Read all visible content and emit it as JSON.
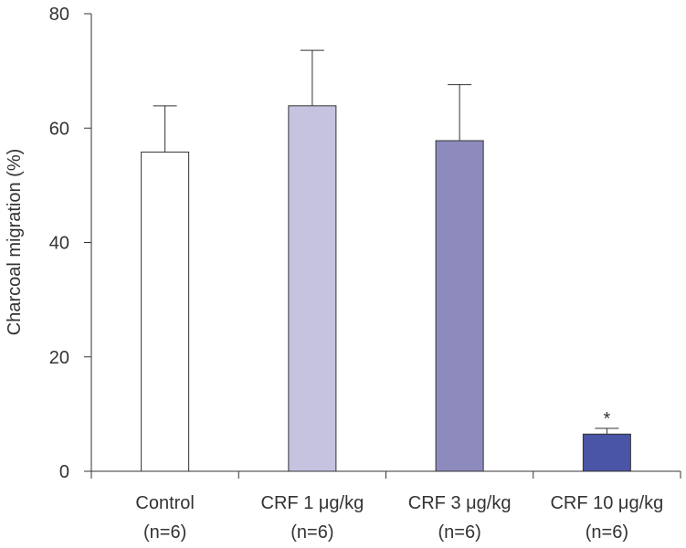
{
  "chart_data": {
    "type": "bar",
    "title": "",
    "xlabel": "",
    "ylabel": "Charcoal migration (%)",
    "ylim": [
      0,
      80
    ],
    "yticks": [
      0,
      20,
      40,
      60,
      80
    ],
    "categories": [
      {
        "name": "Control",
        "n": "(n=6)"
      },
      {
        "name": "CRF 1 μg/kg",
        "n": "(n=6)"
      },
      {
        "name": "CRF 3 μg/kg",
        "n": "(n=6)"
      },
      {
        "name": "CRF 10 μg/kg",
        "n": "(n=6)"
      }
    ],
    "values": [
      55.8,
      63.9,
      57.8,
      6.5
    ],
    "errors": [
      8.1,
      9.7,
      9.8,
      1.0
    ],
    "colors": [
      "#ffffff",
      "#c5c3e0",
      "#8d8bbd",
      "#4a55a6"
    ],
    "annotations": [
      "",
      "",
      "",
      "*"
    ]
  }
}
